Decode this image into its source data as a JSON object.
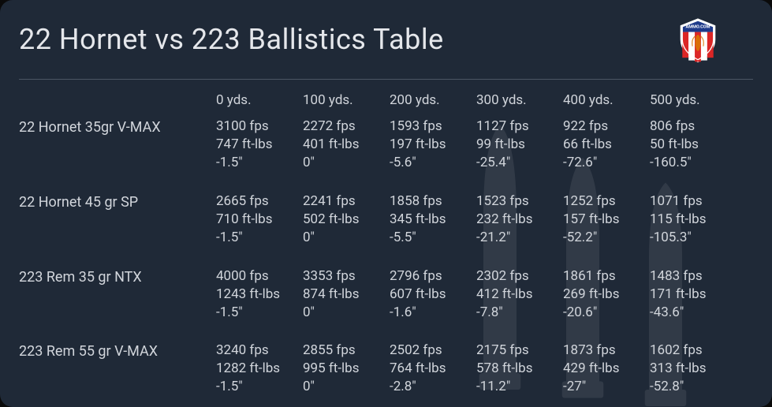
{
  "title": "22 Hornet vs 223 Ballistics Table",
  "logo": {
    "text": "AMMO.COM",
    "shield_top": "#1e3a8a",
    "shield_stripe_red": "#dc2626",
    "shield_stripe_white": "#ffffff",
    "border": "#ffffff"
  },
  "colors": {
    "background": "#1f2937",
    "text": "#d1d5db",
    "divider": "#4b5563"
  },
  "columns": [
    " 0 yds.",
    "100 yds.",
    "200 yds.",
    "300 yds.",
    "400 yds.",
    "500 yds."
  ],
  "rows": [
    {
      "label": "22 Hornet 35gr V-MAX",
      "data": [
        {
          "velocity": "3100 fps",
          "energy": "747 ft-lbs",
          "drop": "-1.5\""
        },
        {
          "velocity": "2272 fps",
          "energy": "401 ft-lbs",
          "drop": "0\""
        },
        {
          "velocity": "1593 fps",
          "energy": "197 ft-lbs",
          "drop": "-5.6\""
        },
        {
          "velocity": "1127 fps",
          "energy": "99 ft-lbs",
          "drop": "-25.4\""
        },
        {
          "velocity": "922 fps",
          "energy": "66 ft-lbs",
          "drop": "-72.6\""
        },
        {
          "velocity": "806 fps",
          "energy": "50 ft-lbs",
          "drop": "-160.5\""
        }
      ]
    },
    {
      "label": "22 Hornet 45 gr SP",
      "data": [
        {
          "velocity": "2665 fps",
          "energy": "710 ft-lbs",
          "drop": "-1.5\""
        },
        {
          "velocity": "2241 fps",
          "energy": "502 ft-lbs",
          "drop": "0\""
        },
        {
          "velocity": "1858 fps",
          "energy": "345 ft-lbs",
          "drop": "-5.5\""
        },
        {
          "velocity": "1523 fps",
          "energy": "232 ft-lbs",
          "drop": "-21.2\""
        },
        {
          "velocity": "1252 fps",
          "energy": "157 ft-lbs",
          "drop": "-52.2\""
        },
        {
          "velocity": "1071 fps",
          "energy": "115 ft-lbs",
          "drop": "-105.3\""
        }
      ]
    },
    {
      "label": "223 Rem 35 gr NTX",
      "data": [
        {
          "velocity": "4000 fps",
          "energy": "1243 ft-lbs",
          "drop": "-1.5\""
        },
        {
          "velocity": "3353 fps",
          "energy": "874 ft-lbs",
          "drop": "0\""
        },
        {
          "velocity": "2796 fps",
          "energy": "607 ft-lbs",
          "drop": "-1.6\""
        },
        {
          "velocity": "2302 fps",
          "energy": "412 ft-lbs",
          "drop": "-7.8\""
        },
        {
          "velocity": "1861 fps",
          "energy": "269 ft-lbs",
          "drop": "-20.6\""
        },
        {
          "velocity": "1483 fps",
          "energy": "171 ft-lbs",
          "drop": "-43.6\""
        }
      ]
    },
    {
      "label": "223 Rem 55 gr V-MAX",
      "data": [
        {
          "velocity": "3240 fps",
          "energy": "1282 ft-lbs",
          "drop": "-1.5\""
        },
        {
          "velocity": "2855 fps",
          "energy": "995 ft-lbs",
          "drop": "0\""
        },
        {
          "velocity": "2502 fps",
          "energy": "764 ft-lbs",
          "drop": "-2.8\""
        },
        {
          "velocity": "2175 fps",
          "energy": "578 ft-lbs",
          "drop": "-11.2\""
        },
        {
          "velocity": "1873 fps",
          "energy": "429 ft-lbs",
          "drop": "-27\""
        },
        {
          "velocity": "1602 fps",
          "energy": "313 ft-lbs",
          "drop": "-52.8\""
        }
      ]
    }
  ]
}
